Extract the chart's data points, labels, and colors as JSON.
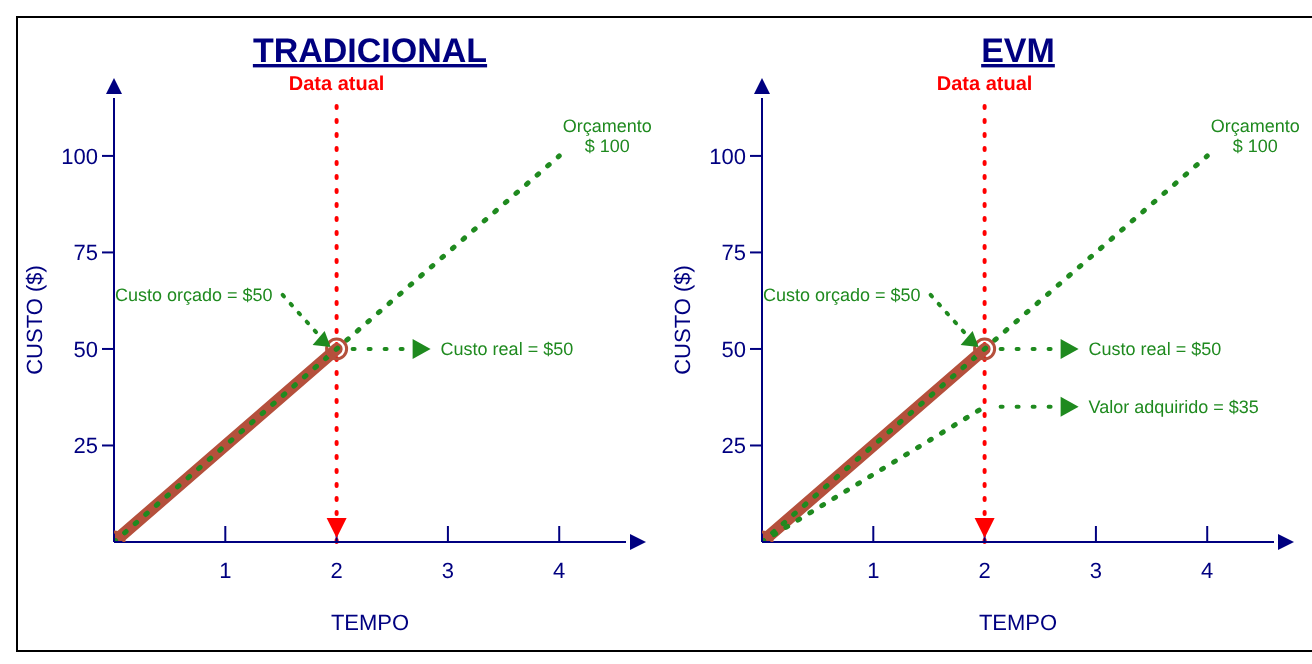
{
  "chart_data": [
    {
      "type": "line",
      "title": "TRADICIONAL",
      "xlabel": "TEMPO",
      "ylabel": "CUSTO ($)",
      "xlim": [
        0,
        4.6
      ],
      "ylim": [
        0,
        115
      ],
      "xticks": [
        1,
        2,
        3,
        4
      ],
      "yticks": [
        25,
        50,
        75,
        100
      ],
      "grid": false,
      "legend": false,
      "series": [
        {
          "x": [
            0,
            2
          ],
          "values": [
            0,
            50
          ],
          "color": "#b5503c",
          "line_style": "solid",
          "marker": "circle"
        },
        {
          "x": [
            0,
            4
          ],
          "values": [
            0,
            100
          ],
          "color": "#1f8a1f",
          "line_style": "dotted"
        }
      ],
      "ref_lines": [
        {
          "axis": "x",
          "value": 2,
          "label": "Data atual",
          "color": "#ff0000",
          "line_style": "dotted"
        }
      ],
      "annotations": [
        "Custo orçado = $50",
        "Custo real = $50",
        "Orçamento\n$ 100"
      ]
    },
    {
      "type": "line",
      "title": "EVM",
      "xlabel": "TEMPO",
      "ylabel": "CUSTO ($)",
      "xlim": [
        0,
        4.6
      ],
      "ylim": [
        0,
        115
      ],
      "xticks": [
        1,
        2,
        3,
        4
      ],
      "yticks": [
        25,
        50,
        75,
        100
      ],
      "grid": false,
      "legend": false,
      "series": [
        {
          "x": [
            0,
            2
          ],
          "values": [
            0,
            50
          ],
          "color": "#b5503c",
          "line_style": "solid",
          "marker": "circle"
        },
        {
          "x": [
            0,
            4
          ],
          "values": [
            0,
            100
          ],
          "color": "#1f8a1f",
          "line_style": "dotted"
        },
        {
          "x": [
            0,
            2
          ],
          "values": [
            0,
            35
          ],
          "color": "#1f8a1f",
          "line_style": "dotted"
        }
      ],
      "ref_lines": [
        {
          "axis": "x",
          "value": 2,
          "label": "Data atual",
          "color": "#ff0000",
          "line_style": "dotted"
        }
      ],
      "annotations": [
        "Custo orçado = $50",
        "Custo real = $50",
        "Orçamento\n$ 100",
        "Valor adquirido = $35"
      ]
    }
  ]
}
